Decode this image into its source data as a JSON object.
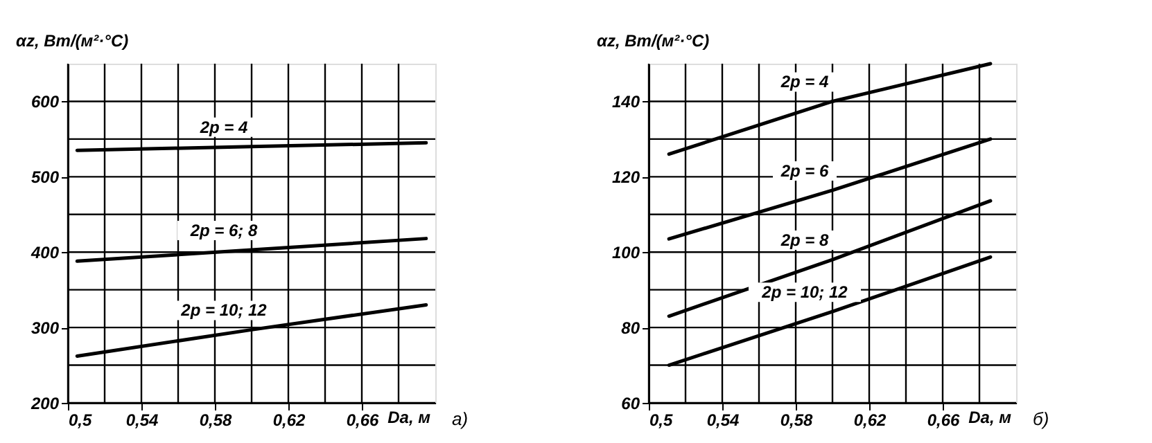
{
  "chart_data": [
    {
      "type": "line",
      "xlabel": "Dа, м",
      "ylabel": "αz, Вт/(м²·°C)",
      "annotations": [
        "а)"
      ],
      "grid": true,
      "x": [
        0.505,
        0.6,
        0.695
      ],
      "series": [
        {
          "name": "2p = 4",
          "color": "#000000",
          "values": [
            535,
            540,
            545
          ]
        },
        {
          "name": "2p = 6; 8",
          "color": "#000000",
          "values": [
            388,
            403,
            418
          ]
        },
        {
          "name": "2p = 10; 12",
          "color": "#000000",
          "values": [
            262,
            297,
            330
          ]
        }
      ],
      "xlim": [
        0.5,
        0.7
      ],
      "ylim": [
        200,
        650
      ],
      "xticks": [
        {
          "value": 0.5,
          "label": "0,5"
        },
        {
          "value": 0.52,
          "label": null
        },
        {
          "value": 0.54,
          "label": "0,54"
        },
        {
          "value": 0.56,
          "label": null
        },
        {
          "value": 0.58,
          "label": "0,58"
        },
        {
          "value": 0.6,
          "label": null
        },
        {
          "value": 0.62,
          "label": "0,62"
        },
        {
          "value": 0.64,
          "label": null
        },
        {
          "value": 0.66,
          "label": "0,66"
        },
        {
          "value": 0.68,
          "label": null
        }
      ],
      "yticks": [
        200,
        {
          "value": 250,
          "label": null
        },
        300,
        {
          "value": 350,
          "label": null
        },
        400,
        {
          "value": 450,
          "label": null
        },
        500,
        {
          "value": 550,
          "label": null
        },
        600
      ]
    },
    {
      "type": "line",
      "xlabel": "Dа, м",
      "ylabel": "αz, Вт/(м²·°C)",
      "annotations": [
        "б)"
      ],
      "grid": true,
      "x": [
        0.511,
        0.6,
        0.686
      ],
      "series": [
        {
          "name": "2p = 4",
          "color": "#000000",
          "values": [
            126,
            140,
            150
          ]
        },
        {
          "name": "2p = 6",
          "color": "#000000",
          "values": [
            103.5,
            116.4,
            130
          ]
        },
        {
          "name": "2p = 8",
          "color": "#000000",
          "values": [
            83,
            98,
            113.6
          ]
        },
        {
          "name": "2p = 10; 12",
          "color": "#000000",
          "values": [
            70,
            84.2,
            98.7
          ]
        }
      ],
      "xlim": [
        0.5,
        0.7
      ],
      "ylim": [
        60,
        150
      ],
      "xticks": [
        {
          "value": 0.5,
          "label": "0,5"
        },
        {
          "value": 0.52,
          "label": null
        },
        {
          "value": 0.54,
          "label": "0,54"
        },
        {
          "value": 0.56,
          "label": null
        },
        {
          "value": 0.58,
          "label": "0,58"
        },
        {
          "value": 0.6,
          "label": null
        },
        {
          "value": 0.62,
          "label": "0,62"
        },
        {
          "value": 0.64,
          "label": null
        },
        {
          "value": 0.66,
          "label": "0,66"
        },
        {
          "value": 0.68,
          "label": null
        }
      ],
      "yticks": [
        60,
        {
          "value": 70,
          "label": null
        },
        80,
        {
          "value": 90,
          "label": null
        },
        100,
        {
          "value": 110,
          "label": null
        },
        120,
        {
          "value": 130,
          "label": null
        },
        140
      ]
    }
  ]
}
